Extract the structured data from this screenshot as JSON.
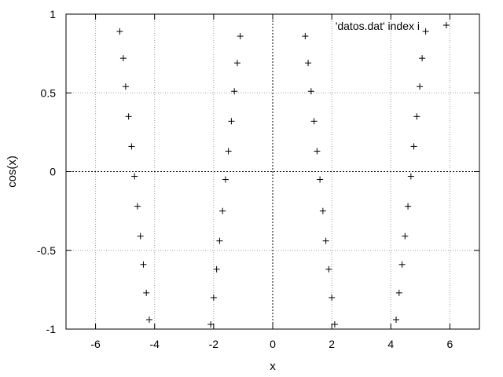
{
  "chart_data": {
    "type": "scatter",
    "xlabel": "x",
    "ylabel": "cos(x)",
    "xlim": [
      -7,
      7
    ],
    "ylim": [
      -1,
      1
    ],
    "xticks": [
      "-6",
      "-4",
      "-2",
      "0",
      "2",
      "4",
      "6"
    ],
    "yticks": [
      "-1",
      "-0.5",
      "0",
      "0.5",
      "1"
    ],
    "grid": true,
    "zero_axes": true,
    "legend_position": "top-right",
    "marker": "plus",
    "series": [
      {
        "name": "'datos.dat' index i",
        "points": [
          [
            -5.18,
            0.89
          ],
          [
            -5.06,
            0.72
          ],
          [
            -4.98,
            0.54
          ],
          [
            -4.88,
            0.35
          ],
          [
            -4.78,
            0.16
          ],
          [
            -4.68,
            -0.03
          ],
          [
            -4.58,
            -0.22
          ],
          [
            -4.48,
            -0.41
          ],
          [
            -4.38,
            -0.59
          ],
          [
            -4.28,
            -0.77
          ],
          [
            -4.18,
            -0.94
          ],
          [
            -1.1,
            0.86
          ],
          [
            -1.2,
            0.69
          ],
          [
            -1.3,
            0.51
          ],
          [
            -1.4,
            0.32
          ],
          [
            -1.5,
            0.13
          ],
          [
            -1.6,
            -0.05
          ],
          [
            -1.7,
            -0.25
          ],
          [
            -1.8,
            -0.44
          ],
          [
            -1.9,
            -0.62
          ],
          [
            -2.0,
            -0.8
          ],
          [
            -2.1,
            -0.97
          ],
          [
            1.1,
            0.86
          ],
          [
            1.2,
            0.69
          ],
          [
            1.3,
            0.51
          ],
          [
            1.4,
            0.32
          ],
          [
            1.5,
            0.13
          ],
          [
            1.6,
            -0.05
          ],
          [
            1.7,
            -0.25
          ],
          [
            1.8,
            -0.44
          ],
          [
            1.9,
            -0.62
          ],
          [
            2.0,
            -0.8
          ],
          [
            2.1,
            -0.97
          ],
          [
            5.18,
            0.89
          ],
          [
            5.06,
            0.72
          ],
          [
            4.98,
            0.54
          ],
          [
            4.88,
            0.35
          ],
          [
            4.78,
            0.16
          ],
          [
            4.68,
            -0.03
          ],
          [
            4.58,
            -0.22
          ],
          [
            4.48,
            -0.41
          ],
          [
            4.38,
            -0.59
          ],
          [
            4.28,
            -0.77
          ],
          [
            4.18,
            -0.94
          ],
          [
            5.88,
            0.93
          ]
        ]
      }
    ]
  }
}
